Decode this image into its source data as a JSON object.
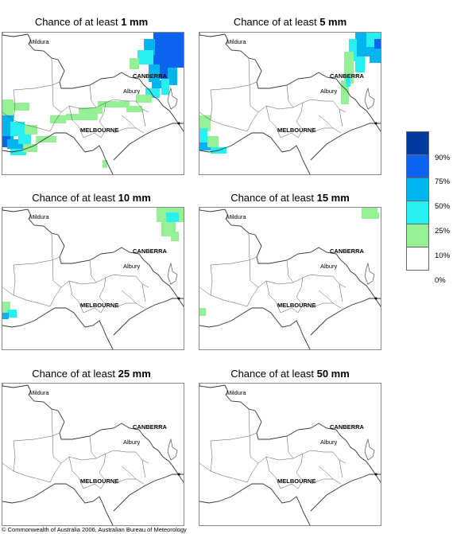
{
  "panels": [
    {
      "prefix": "Chance of at least ",
      "amount": "1 mm"
    },
    {
      "prefix": "Chance of at least ",
      "amount": "5 mm"
    },
    {
      "prefix": "Chance of at least ",
      "amount": "10 mm"
    },
    {
      "prefix": "Chance of at least ",
      "amount": "15 mm"
    },
    {
      "prefix": "Chance of at least ",
      "amount": "25 mm"
    },
    {
      "prefix": "Chance of at least ",
      "amount": "50 mm"
    }
  ],
  "map_labels": {
    "mildura": "Mildura",
    "canberra": "CANBERRA",
    "albury": "Albury",
    "melbourne": "MELBOURNE"
  },
  "legend": {
    "labels": [
      "90%",
      "75%",
      "50%",
      "25%",
      "10%",
      "0%"
    ],
    "colors": [
      "#003ca0",
      "#0a64f0",
      "#00b4f0",
      "#28f0f0",
      "#96f096",
      "#ffffff"
    ]
  },
  "copyright": "© Commonwealth of Australia 2006, Australian Bureau of Meteorology"
}
